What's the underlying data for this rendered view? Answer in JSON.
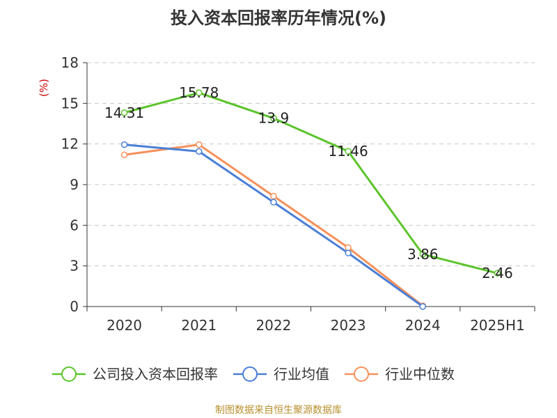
{
  "title": "投入资本回报率历年情况(%)",
  "footer": "制图数据来自恒生聚源数据库",
  "chart_data": {
    "type": "line",
    "title": "投入资本回报率历年情况(%)",
    "ylabel": "(%)",
    "categories": [
      "2020",
      "2021",
      "2022",
      "2023",
      "2024",
      "2025H1"
    ],
    "ylim": [
      0,
      18
    ],
    "yticks": [
      0,
      3,
      6,
      9,
      12,
      15,
      18
    ],
    "grid": true,
    "legend_position": "bottom",
    "series": [
      {
        "name": "公司投入资本回报率",
        "color": "#5cc42b",
        "values": [
          14.31,
          15.78,
          13.9,
          11.46,
          3.86,
          2.46
        ],
        "labels": [
          "14.31",
          "15.78",
          "13.9",
          "11.46",
          "3.86",
          "2.46"
        ]
      },
      {
        "name": "行业均值",
        "color": "#4a7fd6",
        "values": [
          11.95,
          11.45,
          7.7,
          3.95,
          0.0,
          null
        ]
      },
      {
        "name": "行业中位数",
        "color": "#f5915a",
        "values": [
          11.2,
          11.95,
          8.15,
          4.35,
          0.05,
          null
        ]
      }
    ]
  }
}
